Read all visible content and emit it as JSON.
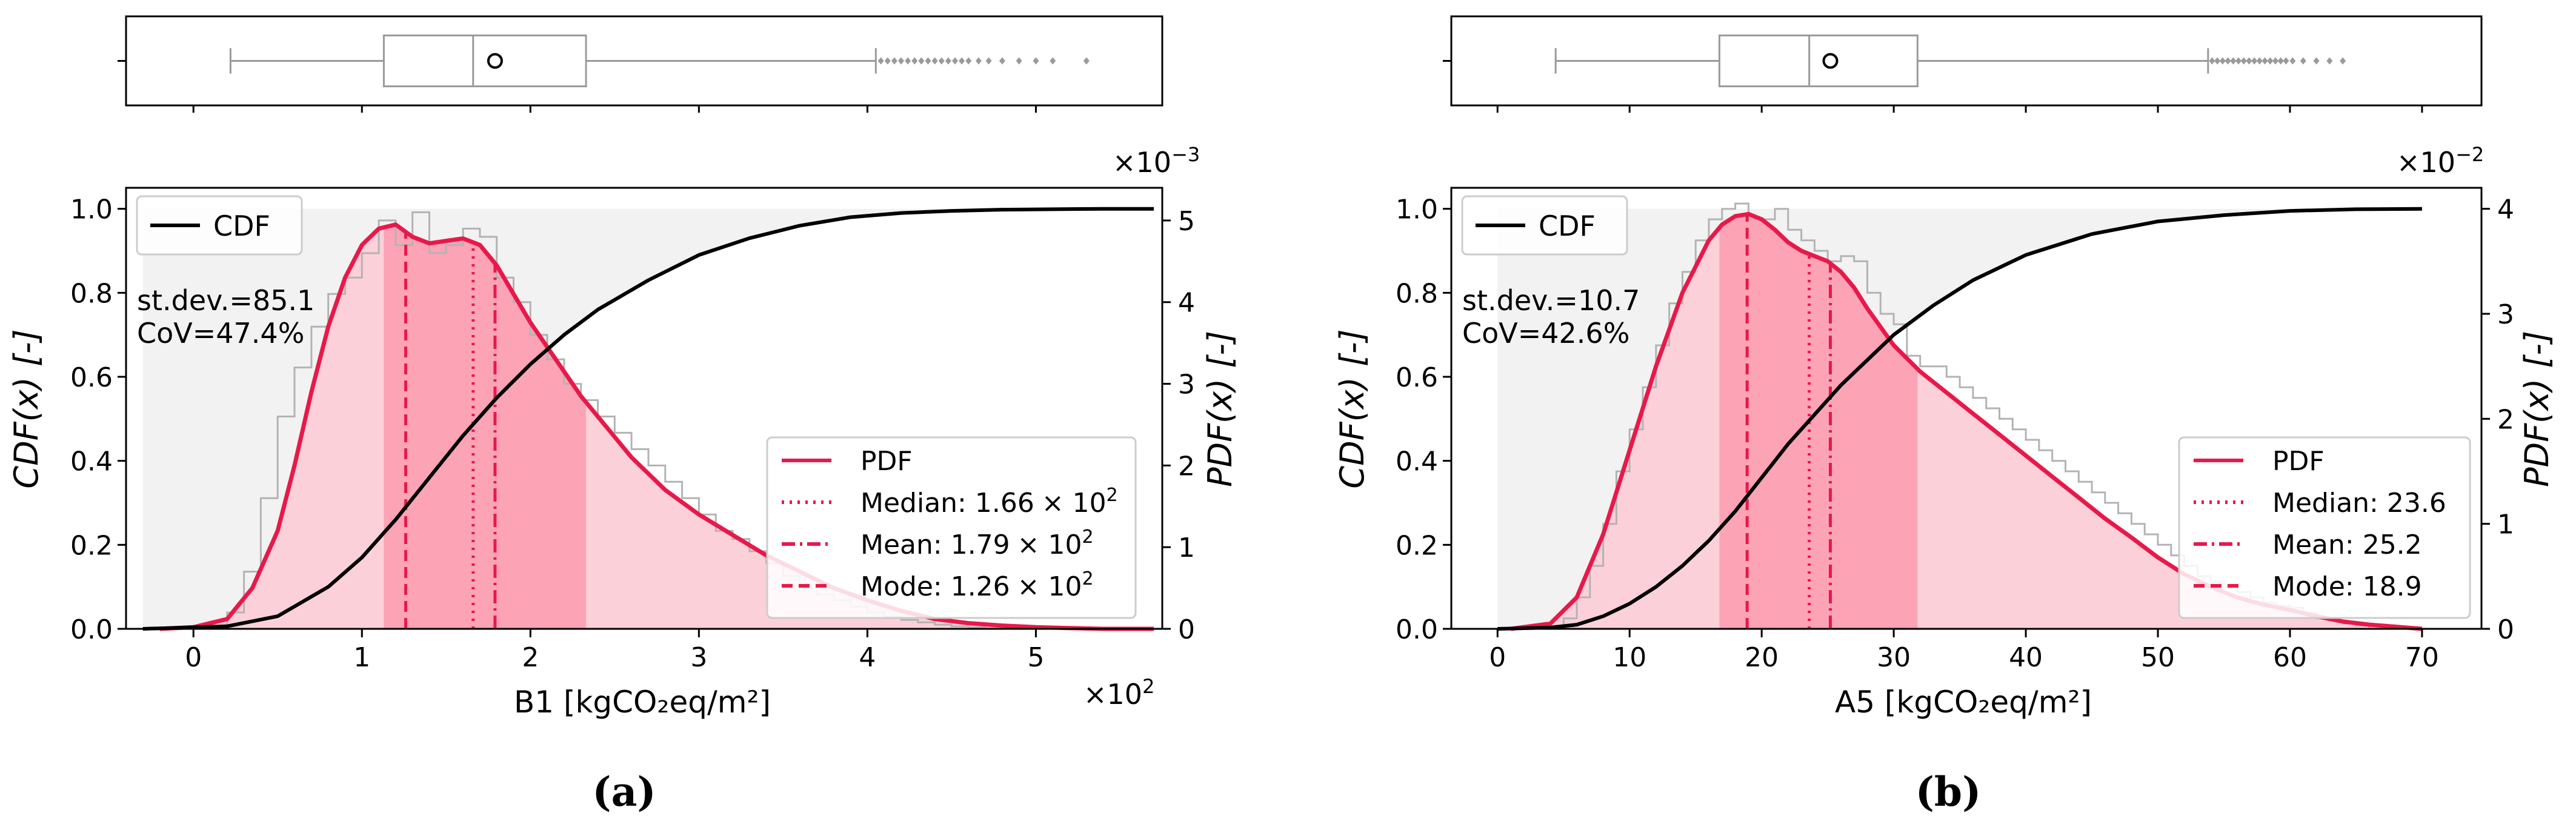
{
  "chart_data": [
    {
      "id": "a",
      "type": "histogram-kde-cdf",
      "caption": "(a)",
      "xlabel": "B1 [kgCO₂eq/m²]",
      "ylabel_left": "CDF(x) [-]",
      "ylabel_right": "PDF(x) [-]",
      "x_multiplier_label": "×10",
      "x_multiplier_exp": "2",
      "y2_multiplier_label": "×10",
      "y2_multiplier_exp": "−3",
      "xlim": [
        -0.4,
        5.75
      ],
      "ylim": [
        0,
        1.05
      ],
      "y2lim": [
        0,
        5.4
      ],
      "xticks": [
        0,
        1,
        2,
        3,
        4,
        5
      ],
      "xtick_labels": [
        "0",
        "1",
        "2",
        "3",
        "4",
        "5"
      ],
      "yticks": [
        0,
        0.2,
        0.4,
        0.6,
        0.8,
        1.0
      ],
      "ytick_labels": [
        "0.0",
        "0.2",
        "0.4",
        "0.6",
        "0.8",
        "1.0"
      ],
      "y2ticks": [
        0,
        1,
        2,
        3,
        4,
        5
      ],
      "y2tick_labels": [
        "0",
        "1",
        "2",
        "3",
        "4",
        "5"
      ],
      "stats_text": [
        "st.dev.=85.1",
        "CoV=47.4%"
      ],
      "cdf_legend": "CDF",
      "legend": {
        "pdf": "PDF",
        "median_label": "Median: 1.66",
        "median_sci": "× 10",
        "median_exp": "2",
        "mean_label": "Mean: 1.79",
        "mean_sci": "× 10",
        "mean_exp": "2",
        "mode_label": "Mode: 1.26",
        "mode_sci": "× 10",
        "mode_exp": "2"
      },
      "median": 1.66,
      "mean": 1.79,
      "mode": 1.26,
      "iqr": [
        1.13,
        2.33
      ],
      "cdf_x": [
        -0.3,
        0.2,
        0.5,
        0.8,
        1.0,
        1.2,
        1.4,
        1.6,
        1.8,
        2.0,
        2.2,
        2.4,
        2.7,
        3.0,
        3.3,
        3.6,
        3.9,
        4.2,
        4.5,
        4.8,
        5.1,
        5.4,
        5.7
      ],
      "cdf_y": [
        0,
        0.006,
        0.03,
        0.1,
        0.17,
        0.26,
        0.36,
        0.46,
        0.55,
        0.63,
        0.7,
        0.76,
        0.83,
        0.89,
        0.93,
        0.96,
        0.98,
        0.99,
        0.995,
        0.998,
        0.999,
        1.0,
        1.0
      ],
      "kde_x": [
        -0.2,
        0.0,
        0.2,
        0.35,
        0.5,
        0.6,
        0.7,
        0.8,
        0.9,
        1.0,
        1.1,
        1.2,
        1.3,
        1.4,
        1.5,
        1.6,
        1.7,
        1.8,
        1.9,
        2.0,
        2.1,
        2.2,
        2.3,
        2.4,
        2.5,
        2.6,
        2.7,
        2.8,
        3.0,
        3.2,
        3.4,
        3.6,
        3.8,
        4.0,
        4.2,
        4.4,
        4.6,
        4.8,
        5.0,
        5.2,
        5.4,
        5.7
      ],
      "kde_y": [
        0,
        0.02,
        0.12,
        0.5,
        1.2,
        2.0,
        2.9,
        3.7,
        4.3,
        4.7,
        4.9,
        4.95,
        4.8,
        4.72,
        4.75,
        4.78,
        4.7,
        4.45,
        4.1,
        3.75,
        3.45,
        3.15,
        2.85,
        2.6,
        2.35,
        2.1,
        1.9,
        1.7,
        1.4,
        1.15,
        0.9,
        0.7,
        0.5,
        0.35,
        0.22,
        0.12,
        0.07,
        0.04,
        0.02,
        0.01,
        0.0,
        0.0
      ],
      "hist_edges": [
        0.2,
        0.3,
        0.4,
        0.5,
        0.6,
        0.7,
        0.8,
        0.9,
        1.0,
        1.1,
        1.2,
        1.3,
        1.4,
        1.5,
        1.6,
        1.7,
        1.8,
        1.9,
        2.0,
        2.1,
        2.2,
        2.3,
        2.4,
        2.5,
        2.6,
        2.7,
        2.8,
        2.9,
        3.0,
        3.1,
        3.2,
        3.3,
        3.4,
        3.5,
        3.6,
        3.7,
        3.8,
        3.9,
        4.0,
        4.1,
        4.2,
        4.3,
        4.4,
        4.5,
        4.6,
        4.7,
        4.8,
        4.9,
        5.0
      ],
      "hist_values": [
        0.2,
        0.7,
        1.6,
        2.6,
        3.2,
        3.7,
        4.1,
        4.3,
        4.6,
        5.0,
        4.7,
        5.1,
        4.6,
        4.7,
        4.9,
        4.8,
        4.3,
        4.0,
        3.6,
        3.3,
        3.0,
        2.8,
        2.6,
        2.4,
        2.2,
        2.0,
        1.8,
        1.6,
        1.4,
        1.2,
        1.1,
        0.95,
        0.8,
        0.65,
        0.5,
        0.42,
        0.35,
        0.27,
        0.2,
        0.15,
        0.11,
        0.08,
        0.05,
        0.03,
        0.02,
        0.01,
        0.01,
        0.0
      ],
      "box": {
        "q1": 1.13,
        "median": 1.66,
        "q3": 2.33,
        "mean": 1.79,
        "whisker_low": 0.22,
        "whisker_high": 4.05,
        "outliers": [
          4.08,
          4.12,
          4.16,
          4.2,
          4.24,
          4.28,
          4.32,
          4.36,
          4.4,
          4.44,
          4.48,
          4.52,
          4.56,
          4.6,
          4.66,
          4.72,
          4.8,
          4.9,
          5.0,
          5.1,
          5.3
        ]
      }
    },
    {
      "id": "b",
      "type": "histogram-kde-cdf",
      "caption": "(b)",
      "xlabel": "A5 [kgCO₂eq/m²]",
      "ylabel_left": "CDF(x) [-]",
      "ylabel_right": "PDF(x) [-]",
      "y2_multiplier_label": "×10",
      "y2_multiplier_exp": "−2",
      "xlim": [
        -3.5,
        74.5
      ],
      "ylim": [
        0,
        1.05
      ],
      "y2lim": [
        0,
        4.2
      ],
      "xticks": [
        0,
        10,
        20,
        30,
        40,
        50,
        60,
        70
      ],
      "xtick_labels": [
        "0",
        "10",
        "20",
        "30",
        "40",
        "50",
        "60",
        "70"
      ],
      "yticks": [
        0,
        0.2,
        0.4,
        0.6,
        0.8,
        1.0
      ],
      "ytick_labels": [
        "0.0",
        "0.2",
        "0.4",
        "0.6",
        "0.8",
        "1.0"
      ],
      "y2ticks": [
        0,
        1,
        2,
        3,
        4
      ],
      "y2tick_labels": [
        "0",
        "1",
        "2",
        "3",
        "4"
      ],
      "stats_text": [
        "st.dev.=10.7",
        "CoV=42.6%"
      ],
      "cdf_legend": "CDF",
      "legend": {
        "pdf": "PDF",
        "median_label": "Median: 23.6",
        "mean_label": "Mean: 25.2",
        "mode_label": "Mode: 18.9"
      },
      "median": 23.6,
      "mean": 25.2,
      "mode": 18.9,
      "iqr": [
        16.8,
        31.8
      ],
      "cdf_x": [
        0,
        4,
        6,
        8,
        10,
        12,
        14,
        16,
        18,
        20,
        22,
        24,
        26,
        28,
        30,
        33,
        36,
        40,
        45,
        50,
        55,
        60,
        65,
        70
      ],
      "cdf_y": [
        0,
        0.003,
        0.01,
        0.03,
        0.06,
        0.1,
        0.15,
        0.21,
        0.28,
        0.36,
        0.44,
        0.51,
        0.58,
        0.64,
        0.7,
        0.77,
        0.83,
        0.89,
        0.94,
        0.97,
        0.985,
        0.995,
        0.999,
        1.0
      ],
      "kde_x": [
        1,
        4,
        6,
        8,
        10,
        12,
        14,
        16,
        17,
        18,
        19,
        20,
        21,
        22,
        23,
        24,
        25,
        26,
        27,
        28,
        30,
        32,
        34,
        36,
        38,
        40,
        42,
        44,
        46,
        48,
        50,
        52,
        54,
        56,
        58,
        60,
        62,
        64,
        66,
        68,
        70
      ],
      "kde_y": [
        0,
        0.05,
        0.3,
        0.9,
        1.7,
        2.5,
        3.2,
        3.7,
        3.85,
        3.93,
        3.95,
        3.9,
        3.8,
        3.68,
        3.6,
        3.55,
        3.5,
        3.4,
        3.25,
        3.05,
        2.7,
        2.45,
        2.25,
        2.05,
        1.85,
        1.65,
        1.45,
        1.25,
        1.05,
        0.87,
        0.68,
        0.52,
        0.4,
        0.3,
        0.23,
        0.18,
        0.12,
        0.07,
        0.04,
        0.02,
        0.0
      ],
      "hist_edges": [
        5,
        6,
        7,
        8,
        9,
        10,
        11,
        12,
        13,
        14,
        15,
        16,
        17,
        18,
        19,
        20,
        21,
        22,
        23,
        24,
        25,
        26,
        27,
        28,
        29,
        30,
        31,
        32,
        33,
        34,
        35,
        36,
        37,
        38,
        39,
        40,
        41,
        42,
        43,
        44,
        45,
        46,
        47,
        48,
        49,
        50,
        51,
        52,
        53,
        54,
        55,
        56,
        57,
        58,
        59,
        60,
        61,
        62,
        63,
        64,
        65,
        66
      ],
      "hist_values": [
        0.1,
        0.3,
        0.6,
        1.0,
        1.5,
        1.9,
        2.3,
        2.7,
        3.1,
        3.4,
        3.7,
        3.9,
        4.0,
        4.05,
        3.9,
        3.9,
        4.0,
        3.8,
        3.7,
        3.6,
        3.5,
        3.55,
        3.5,
        3.2,
        3.0,
        2.9,
        2.6,
        2.5,
        2.5,
        2.4,
        2.3,
        2.2,
        2.1,
        2.0,
        1.9,
        1.8,
        1.7,
        1.6,
        1.5,
        1.4,
        1.3,
        1.2,
        1.1,
        1.0,
        0.9,
        0.8,
        0.7,
        0.6,
        0.5,
        0.45,
        0.4,
        0.35,
        0.3,
        0.25,
        0.22,
        0.2,
        0.15,
        0.1,
        0.08,
        0.05,
        0.03
      ],
      "box": {
        "q1": 16.8,
        "median": 23.6,
        "q3": 31.8,
        "mean": 25.2,
        "whisker_low": 4.4,
        "whisker_high": 53.8,
        "outliers": [
          54.1,
          54.5,
          54.9,
          55.3,
          55.7,
          56.1,
          56.5,
          56.9,
          57.3,
          57.7,
          58.1,
          58.5,
          58.9,
          59.3,
          59.7,
          60.2,
          61.0,
          62.0,
          63.0,
          64.0
        ]
      }
    }
  ],
  "colors": {
    "pdf": "#e8194a",
    "fill_light": "#fcd0d9",
    "fill_dark": "#fca3b6",
    "cdf_fill": "#f2f2f2",
    "cdf_line": "#000000",
    "hist": "#b3b3b3",
    "box": "#9a9a9a"
  }
}
